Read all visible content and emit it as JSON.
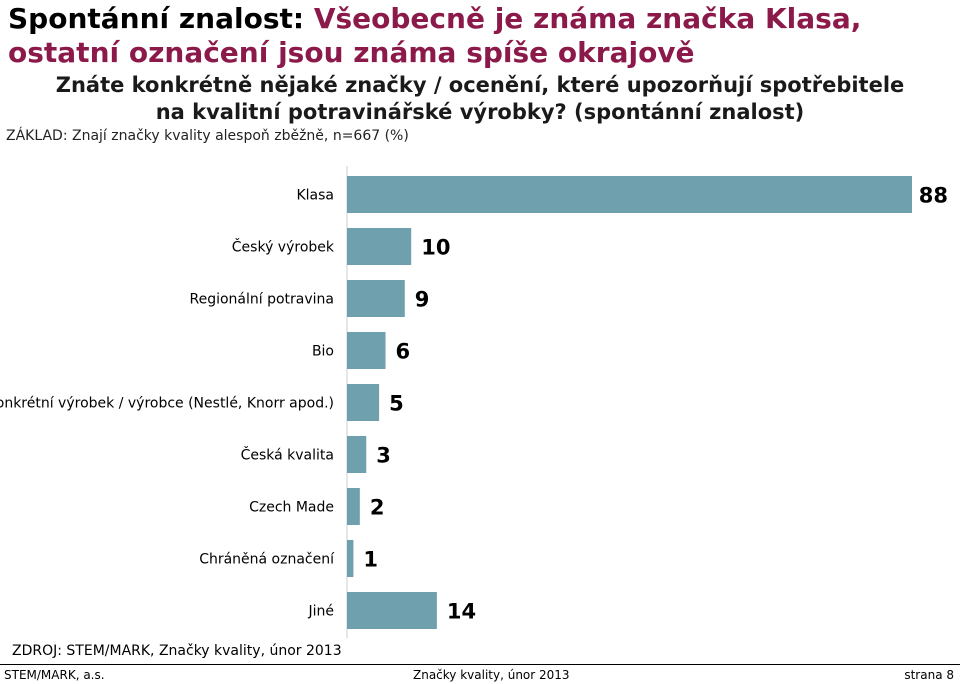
{
  "slide": {
    "title_prefix": "Spontánní znalost: ",
    "title_accent": "Všeobecně je známa značka Klasa, ostatní označení jsou známa spíše okrajově",
    "question": "Znáte konkrétně nějaké značky / ocenění, které upozorňují spotřebitele na kvalitní potravinářské výrobky?",
    "question_note": "(spontánní znalost)",
    "base": "ZÁKLAD: Znají značky kvality alespoň zběžně, n=667 (%)",
    "source": "ZDROJ: STEM/MARK, Značky kvality, únor 2013",
    "footer_left": "STEM/MARK, a.s.",
    "footer_center": "Značky kvality, únor 2013",
    "footer_right": "strana 8"
  },
  "colors": {
    "bar": "#6fa0ad",
    "accent": "#8b1a4a"
  },
  "chart_data": {
    "type": "bar",
    "orientation": "horizontal",
    "unit": "%",
    "xlim": [
      0,
      90
    ],
    "categories": [
      "Klasa",
      "Český výrobek",
      "Regionální potravina",
      "Bio",
      "Konkrétní výrobek / výrobce (Nestlé, Knorr apod.)",
      "Česká kvalita",
      "Czech Made",
      "Chráněná označení",
      "Jiné"
    ],
    "values": [
      88,
      10,
      9,
      6,
      5,
      3,
      2,
      1,
      14
    ],
    "data_labels": [
      "88",
      "10",
      "9",
      "6",
      "5",
      "3",
      "2",
      "1",
      "14"
    ]
  }
}
